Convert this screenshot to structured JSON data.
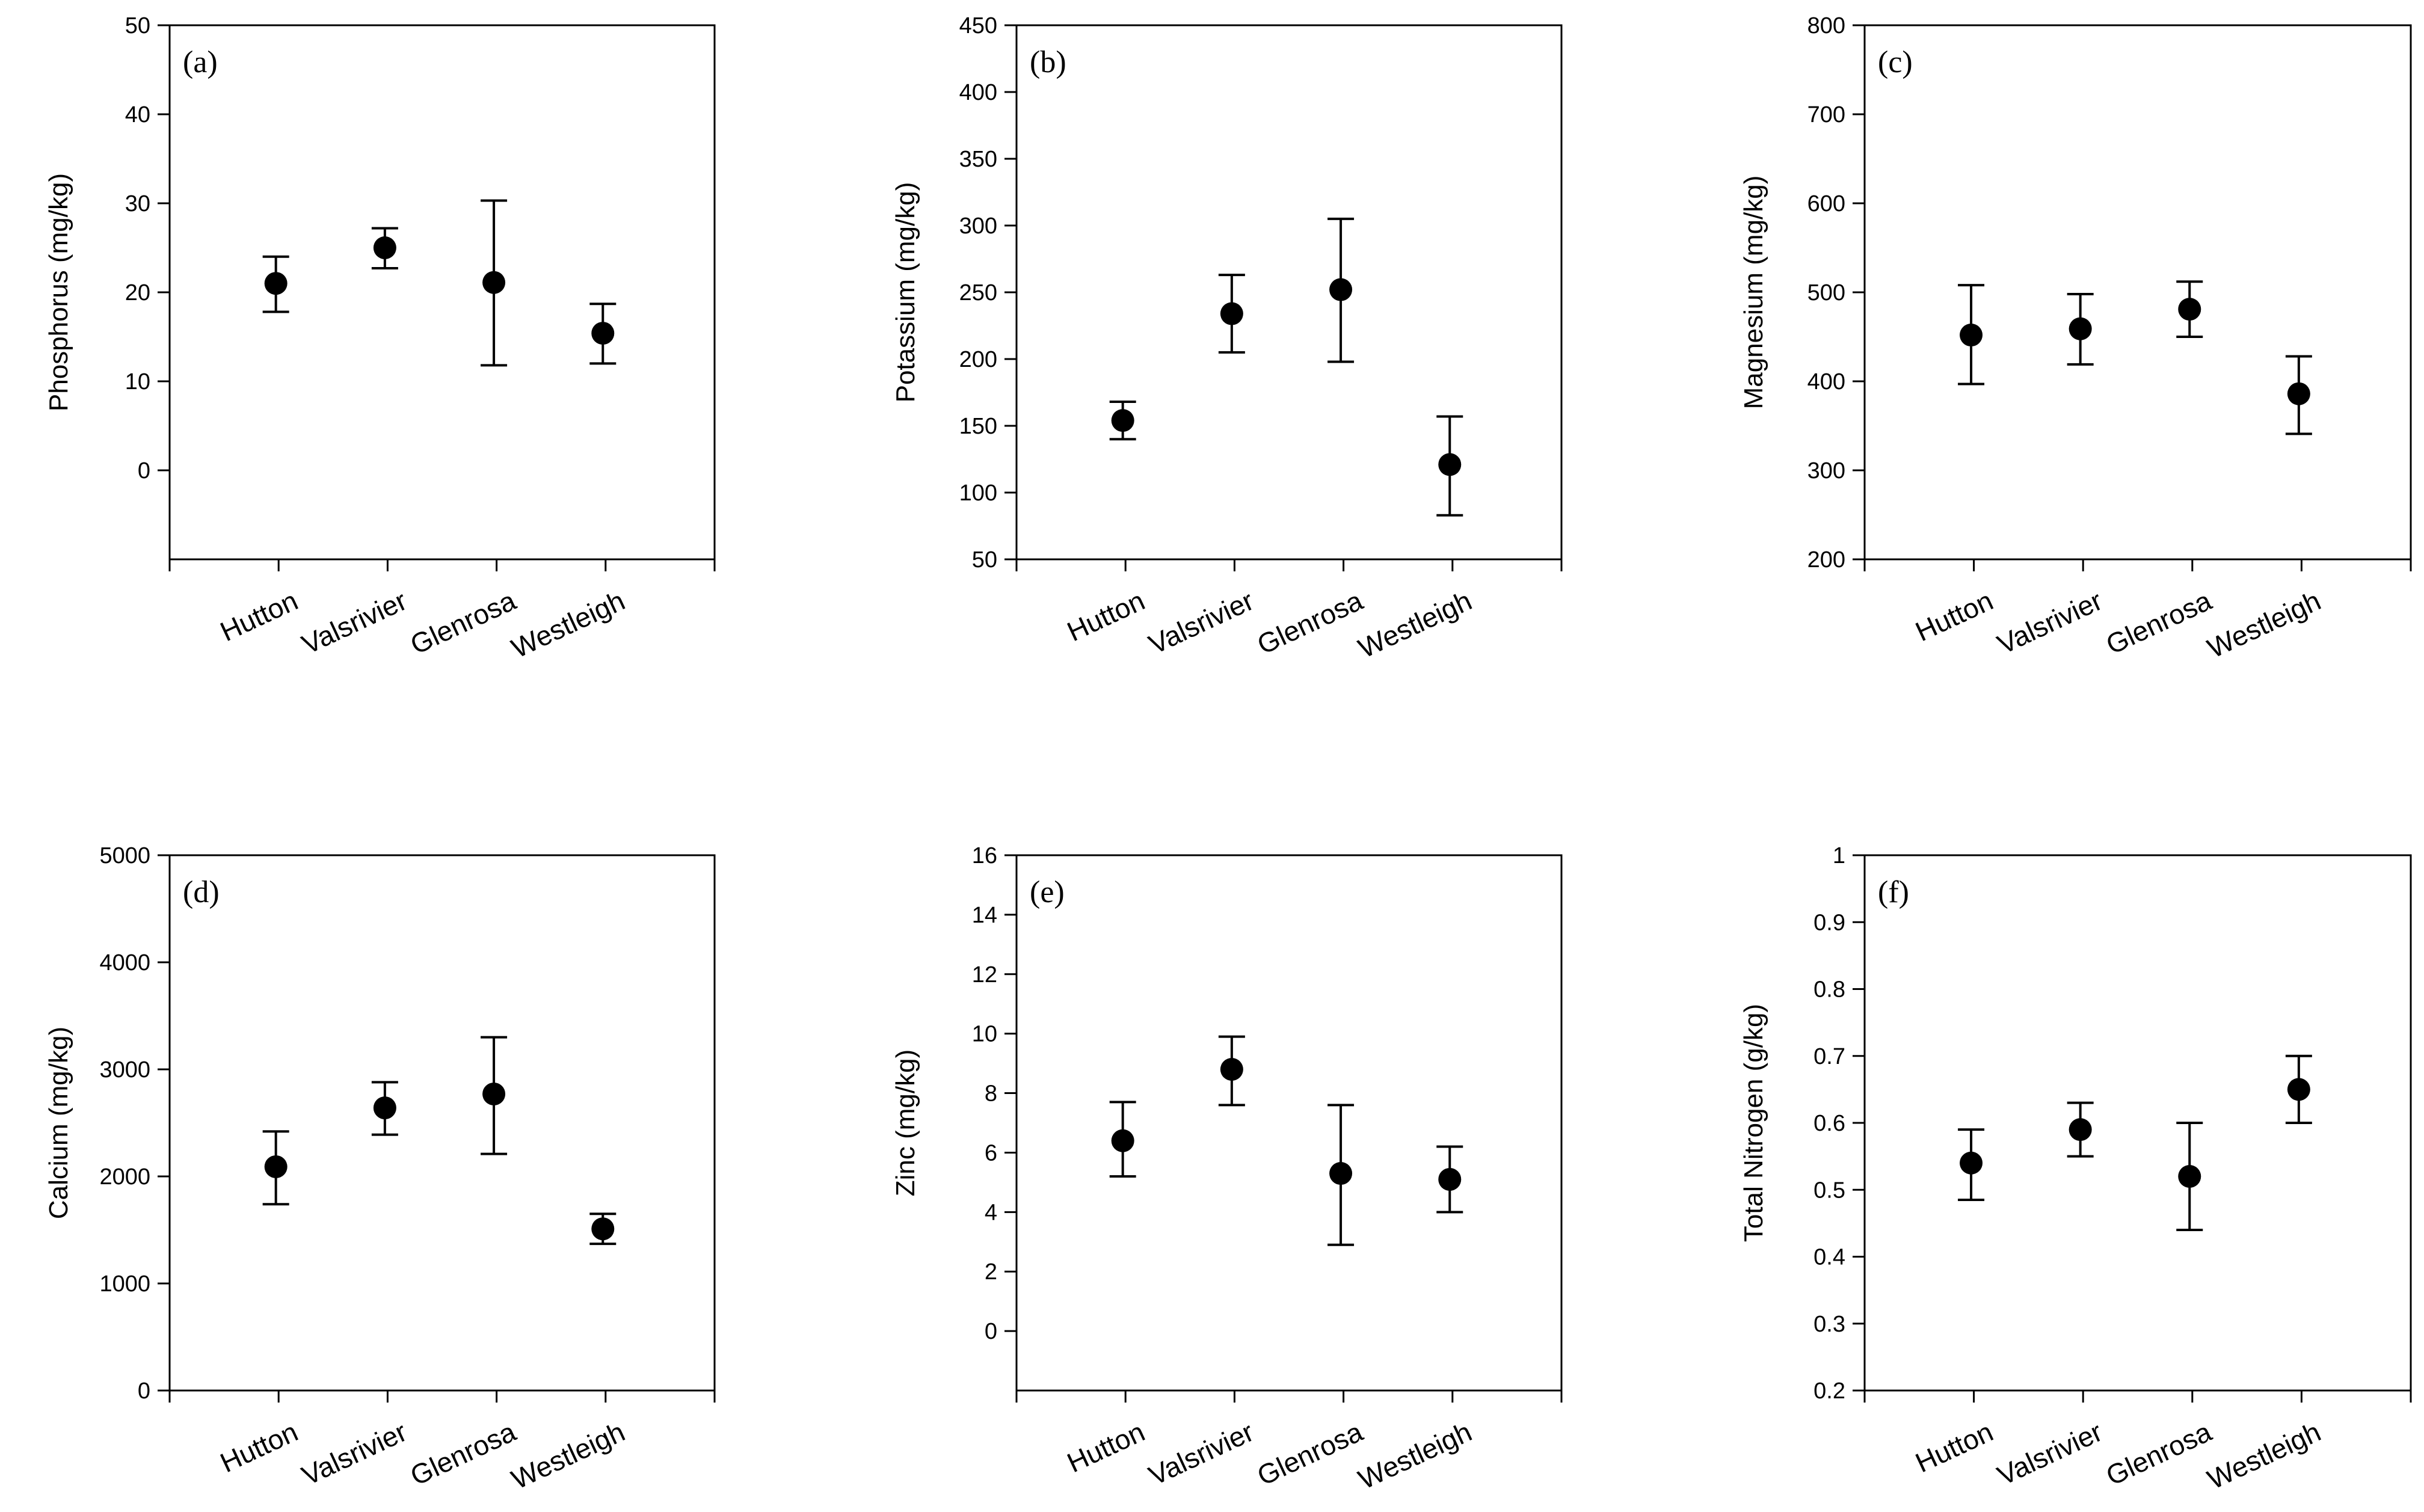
{
  "chart_data": [
    {
      "type": "scatter",
      "panel": "(a)",
      "ylabel": "Phosphorus (mg/kg)",
      "ylim": [
        -10,
        50
      ],
      "yticks": [
        0,
        10,
        20,
        30,
        40,
        50
      ],
      "categories": [
        "Hutton",
        "Valsrivier",
        "Glenrosa",
        "Westleigh"
      ],
      "values": [
        21.0,
        25.0,
        21.1,
        15.4
      ],
      "err_low": [
        17.8,
        22.7,
        11.8,
        12.0
      ],
      "err_high": [
        24.0,
        27.2,
        30.3,
        18.7
      ]
    },
    {
      "type": "scatter",
      "panel": "(b)",
      "ylabel": "Potassium (mg/kg)",
      "ylim": [
        50,
        450
      ],
      "yticks": [
        50,
        100,
        150,
        200,
        250,
        300,
        350,
        400,
        450
      ],
      "categories": [
        "Hutton",
        "Valsrivier",
        "Glenrosa",
        "Westleigh"
      ],
      "values": [
        154,
        234,
        252,
        121
      ],
      "err_low": [
        140,
        205,
        198,
        83
      ],
      "err_high": [
        168,
        263,
        305,
        157
      ]
    },
    {
      "type": "scatter",
      "panel": "(c)",
      "ylabel": "Magnesium (mg/kg)",
      "ylim": [
        200,
        800
      ],
      "yticks": [
        200,
        300,
        400,
        500,
        600,
        700,
        800
      ],
      "categories": [
        "Hutton",
        "Valsrivier",
        "Glenrosa",
        "Westleigh"
      ],
      "values": [
        452,
        459,
        481,
        386
      ],
      "err_low": [
        397,
        419,
        450,
        341
      ],
      "err_high": [
        508,
        498,
        512,
        428
      ]
    },
    {
      "type": "scatter",
      "panel": "(d)",
      "ylabel": "Calcium (mg/kg)",
      "ylim": [
        0,
        5000
      ],
      "yticks": [
        0,
        1000,
        2000,
        3000,
        4000,
        5000
      ],
      "categories": [
        "Hutton",
        "Valsrivier",
        "Glenrosa",
        "Westleigh"
      ],
      "values": [
        2090,
        2640,
        2770,
        1510
      ],
      "err_low": [
        1740,
        2390,
        2210,
        1370
      ],
      "err_high": [
        2420,
        2880,
        3300,
        1650
      ]
    },
    {
      "type": "scatter",
      "panel": "(e)",
      "ylabel": "Zinc (mg/kg)",
      "ylim": [
        -2,
        16
      ],
      "yticks": [
        0,
        2,
        4,
        6,
        8,
        10,
        12,
        14,
        16
      ],
      "categories": [
        "Hutton",
        "Valsrivier",
        "Glenrosa",
        "Westleigh"
      ],
      "values": [
        6.4,
        8.8,
        5.3,
        5.1
      ],
      "err_low": [
        5.2,
        7.6,
        2.9,
        4.0
      ],
      "err_high": [
        7.7,
        9.9,
        7.6,
        6.2
      ]
    },
    {
      "type": "scatter",
      "panel": "(f)",
      "ylabel": "Total Nitrogen (g/kg)",
      "ylim": [
        0.2,
        1.0
      ],
      "yticks": [
        0.2,
        0.3,
        0.4,
        0.5,
        0.6,
        0.7,
        0.8,
        0.9,
        1.0
      ],
      "categories": [
        "Hutton",
        "Valsrivier",
        "Glenrosa",
        "Westleigh"
      ],
      "values": [
        0.54,
        0.59,
        0.52,
        0.65
      ],
      "err_low": [
        0.485,
        0.55,
        0.44,
        0.6
      ],
      "err_high": [
        0.59,
        0.63,
        0.6,
        0.7
      ]
    }
  ]
}
